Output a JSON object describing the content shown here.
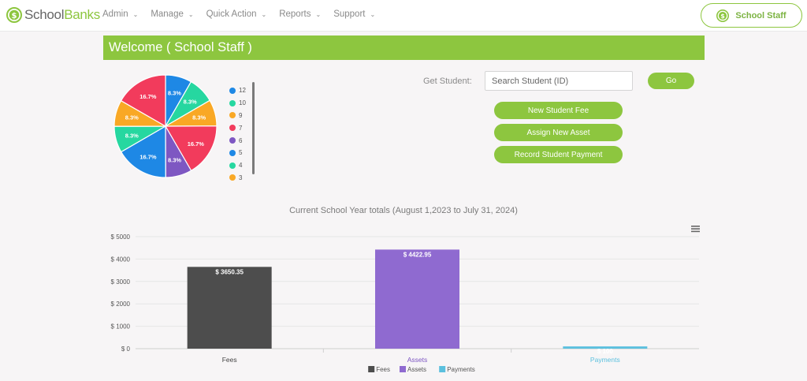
{
  "header": {
    "logo_prefix": "School",
    "logo_suffix": "Banks",
    "nav": [
      {
        "label": "Admin"
      },
      {
        "label": "Manage"
      },
      {
        "label": "Quick Action"
      },
      {
        "label": "Reports"
      },
      {
        "label": "Support"
      }
    ],
    "user_button": "School Staff"
  },
  "banner": {
    "title": "Welcome ( School Staff )"
  },
  "actions": {
    "get_student_label": "Get Student:",
    "search_placeholder": "Search Student (ID)",
    "go_label": "Go",
    "new_fee_label": "New Student Fee",
    "assign_asset_label": "Assign New Asset",
    "record_payment_label": "Record Student Payment"
  },
  "pie_chart": {
    "type": "pie",
    "slices": [
      {
        "label": "12",
        "value": 8.3,
        "text": "8.3%",
        "color": "#1e88e5"
      },
      {
        "label": "10",
        "value": 8.3,
        "text": "8.3%",
        "color": "#26d7a0"
      },
      {
        "label": "9",
        "value": 8.3,
        "text": "8.3%",
        "color": "#f9a825"
      },
      {
        "label": "7",
        "value": 16.7,
        "text": "16.7%",
        "color": "#f23b5c"
      },
      {
        "label": "6",
        "value": 8.3,
        "text": "8.3%",
        "color": "#7e57c2"
      },
      {
        "label": "5",
        "value": 16.7,
        "text": "16.7%",
        "color": "#1e88e5"
      },
      {
        "label": "4",
        "value": 8.3,
        "text": "8.3%",
        "color": "#26d7a0"
      },
      {
        "label": "3",
        "value": 8.3,
        "text": "8.3%",
        "color": "#f9a825"
      },
      {
        "label": "",
        "value": 16.7,
        "text": "16.7%",
        "color": "#f23b5c"
      }
    ]
  },
  "chart_data": {
    "type": "bar",
    "title": "Current School Year totals (August 1,2023 to July 31, 2024)",
    "categories": [
      "Fees",
      "Assets",
      "Payments"
    ],
    "values": [
      3650.35,
      4422.95,
      100
    ],
    "data_labels": [
      "$ 3650.35",
      "$ 4422.95",
      "$ 100"
    ],
    "colors": [
      "#4d4d4d",
      "#8f6ad0",
      "#5bc0de"
    ],
    "category_colors": [
      "#444444",
      "#7e57c2",
      "#5bc0de"
    ],
    "yticks": [
      0,
      1000,
      2000,
      3000,
      4000,
      5000
    ],
    "ytick_labels": [
      "$ 0",
      "$ 1000",
      "$ 2000",
      "$ 3000",
      "$ 4000",
      "$ 5000"
    ],
    "ylim": [
      0,
      5000
    ],
    "grid": true,
    "legend": [
      "Fees",
      "Assets",
      "Payments"
    ],
    "legend_position": "bottom-center"
  }
}
